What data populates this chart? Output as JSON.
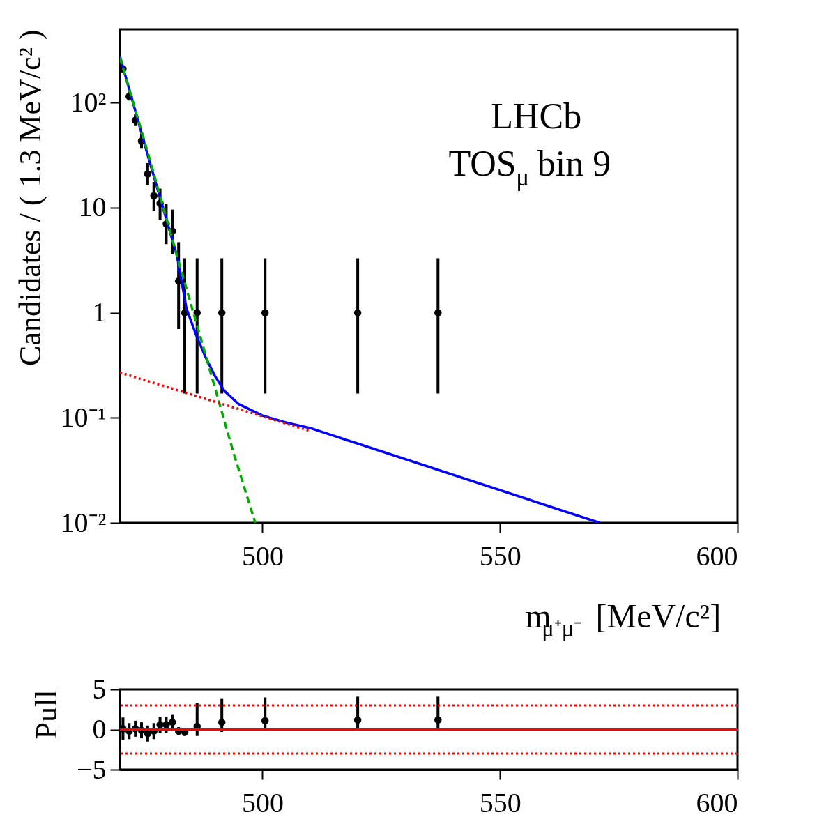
{
  "chart_data": [
    {
      "type": "scatter",
      "log": "y",
      "grid": false,
      "xlim": [
        470,
        600
      ],
      "xticks": [
        500,
        550,
        600
      ],
      "ylim": [
        0.01,
        500
      ],
      "yticks": [
        {
          "value": 0.01,
          "label": "10⁻²"
        },
        {
          "value": 0.1,
          "label": "10⁻¹"
        },
        1,
        10,
        {
          "value": 100,
          "label": "10²"
        }
      ],
      "xlabel": "m$_{μ⁺μ⁻}$ [MeV/c²]",
      "ylabel": "Candidates / ( 1.3 MeV/c² )",
      "annotations": [
        "LHCb",
        "TOS$_{μ}$ bin 9"
      ],
      "x": [
        470.65,
        471.95,
        473.25,
        474.55,
        475.85,
        477.15,
        478.45,
        479.75,
        481.05,
        482.35,
        483.65,
        486.25,
        491.45,
        500.55,
        520.05,
        536.95
      ],
      "series": [
        {
          "marker": "circle",
          "color": "#000000",
          "values": [
            210,
            115,
            68,
            43,
            21,
            13,
            11,
            7,
            6,
            2,
            1,
            1,
            1,
            1,
            1,
            1
          ],
          "errors": [
            [
              196,
              225
            ],
            [
              104.8,
              126.2
            ],
            [
              59.9,
              77.3
            ],
            [
              36.5,
              50.6
            ],
            [
              16.5,
              26.6
            ],
            [
              9.4,
              17.6
            ],
            [
              7.7,
              15.2
            ],
            [
              4.5,
              10.8
            ],
            [
              3.6,
              9.6
            ],
            [
              0.7,
              4.7
            ],
            [
              0.17,
              3.3
            ],
            [
              0.17,
              3.3
            ],
            [
              0.17,
              3.3
            ],
            [
              0.17,
              3.3
            ],
            [
              0.17,
              3.3
            ],
            [
              0.17,
              3.3
            ]
          ]
        },
        {
          "type": "line",
          "marker": "none",
          "color": "#0000ff",
          "line_style": "solid",
          "x": [
            470,
            476,
            482,
            484,
            486,
            488,
            490,
            492,
            495,
            500,
            505,
            510,
            571
          ],
          "values": [
            278,
            30,
            3.5,
            1.1,
            0.62,
            0.38,
            0.25,
            0.18,
            0.135,
            0.105,
            0.09,
            0.08,
            0.01
          ]
        },
        {
          "type": "line",
          "marker": "none",
          "color": "#00aa00",
          "line_style": "dashed",
          "x": [
            470,
            476,
            482,
            488,
            494,
            498.5
          ],
          "values": [
            270,
            32,
            3.5,
            0.4,
            0.045,
            0.01
          ]
        },
        {
          "type": "line",
          "marker": "none",
          "color": "#ff0000",
          "line_style": "dotted",
          "x": [
            470,
            510
          ],
          "values": [
            0.27,
            0.075
          ]
        }
      ]
    },
    {
      "type": "scatter",
      "grid": false,
      "marker": "circle",
      "xlim": [
        470,
        600
      ],
      "xticks": [
        500,
        550,
        600
      ],
      "ylim": [
        -5,
        5
      ],
      "yticks": [
        {
          "value": -5,
          "label": "−5"
        },
        0,
        5
      ],
      "ylabel": "Pull",
      "x": [
        470.65,
        471.95,
        473.25,
        474.55,
        475.85,
        477.15,
        478.45,
        479.75,
        481.05,
        482.35,
        483.65,
        486.25,
        491.45,
        500.55,
        520.05,
        536.95
      ],
      "series": [
        {
          "color": "#000000",
          "values": [
            0.1,
            -0.2,
            0.1,
            -0.1,
            -0.5,
            -0.2,
            0.6,
            0.6,
            0.9,
            -0.2,
            -0.3,
            0.4,
            0.9,
            1.1,
            1.2,
            1.2
          ],
          "errors": [
            1.4,
            1,
            1,
            1,
            1,
            1,
            1,
            1,
            1,
            0.5,
            0.5,
            [
              -0.8,
              3.3
            ],
            [
              -0.3,
              3.9
            ],
            [
              0,
              4
            ],
            [
              0,
              4.1
            ],
            [
              0,
              4.1
            ]
          ]
        }
      ],
      "ref_lines": [
        {
          "axis": "y",
          "value": 0,
          "color": "#ff0000",
          "line_style": "solid"
        },
        {
          "axis": "y",
          "value": 3,
          "color": "#ff0000",
          "line_style": "dotted"
        },
        {
          "axis": "y",
          "value": -3,
          "color": "#ff0000",
          "line_style": "dotted"
        }
      ]
    }
  ]
}
